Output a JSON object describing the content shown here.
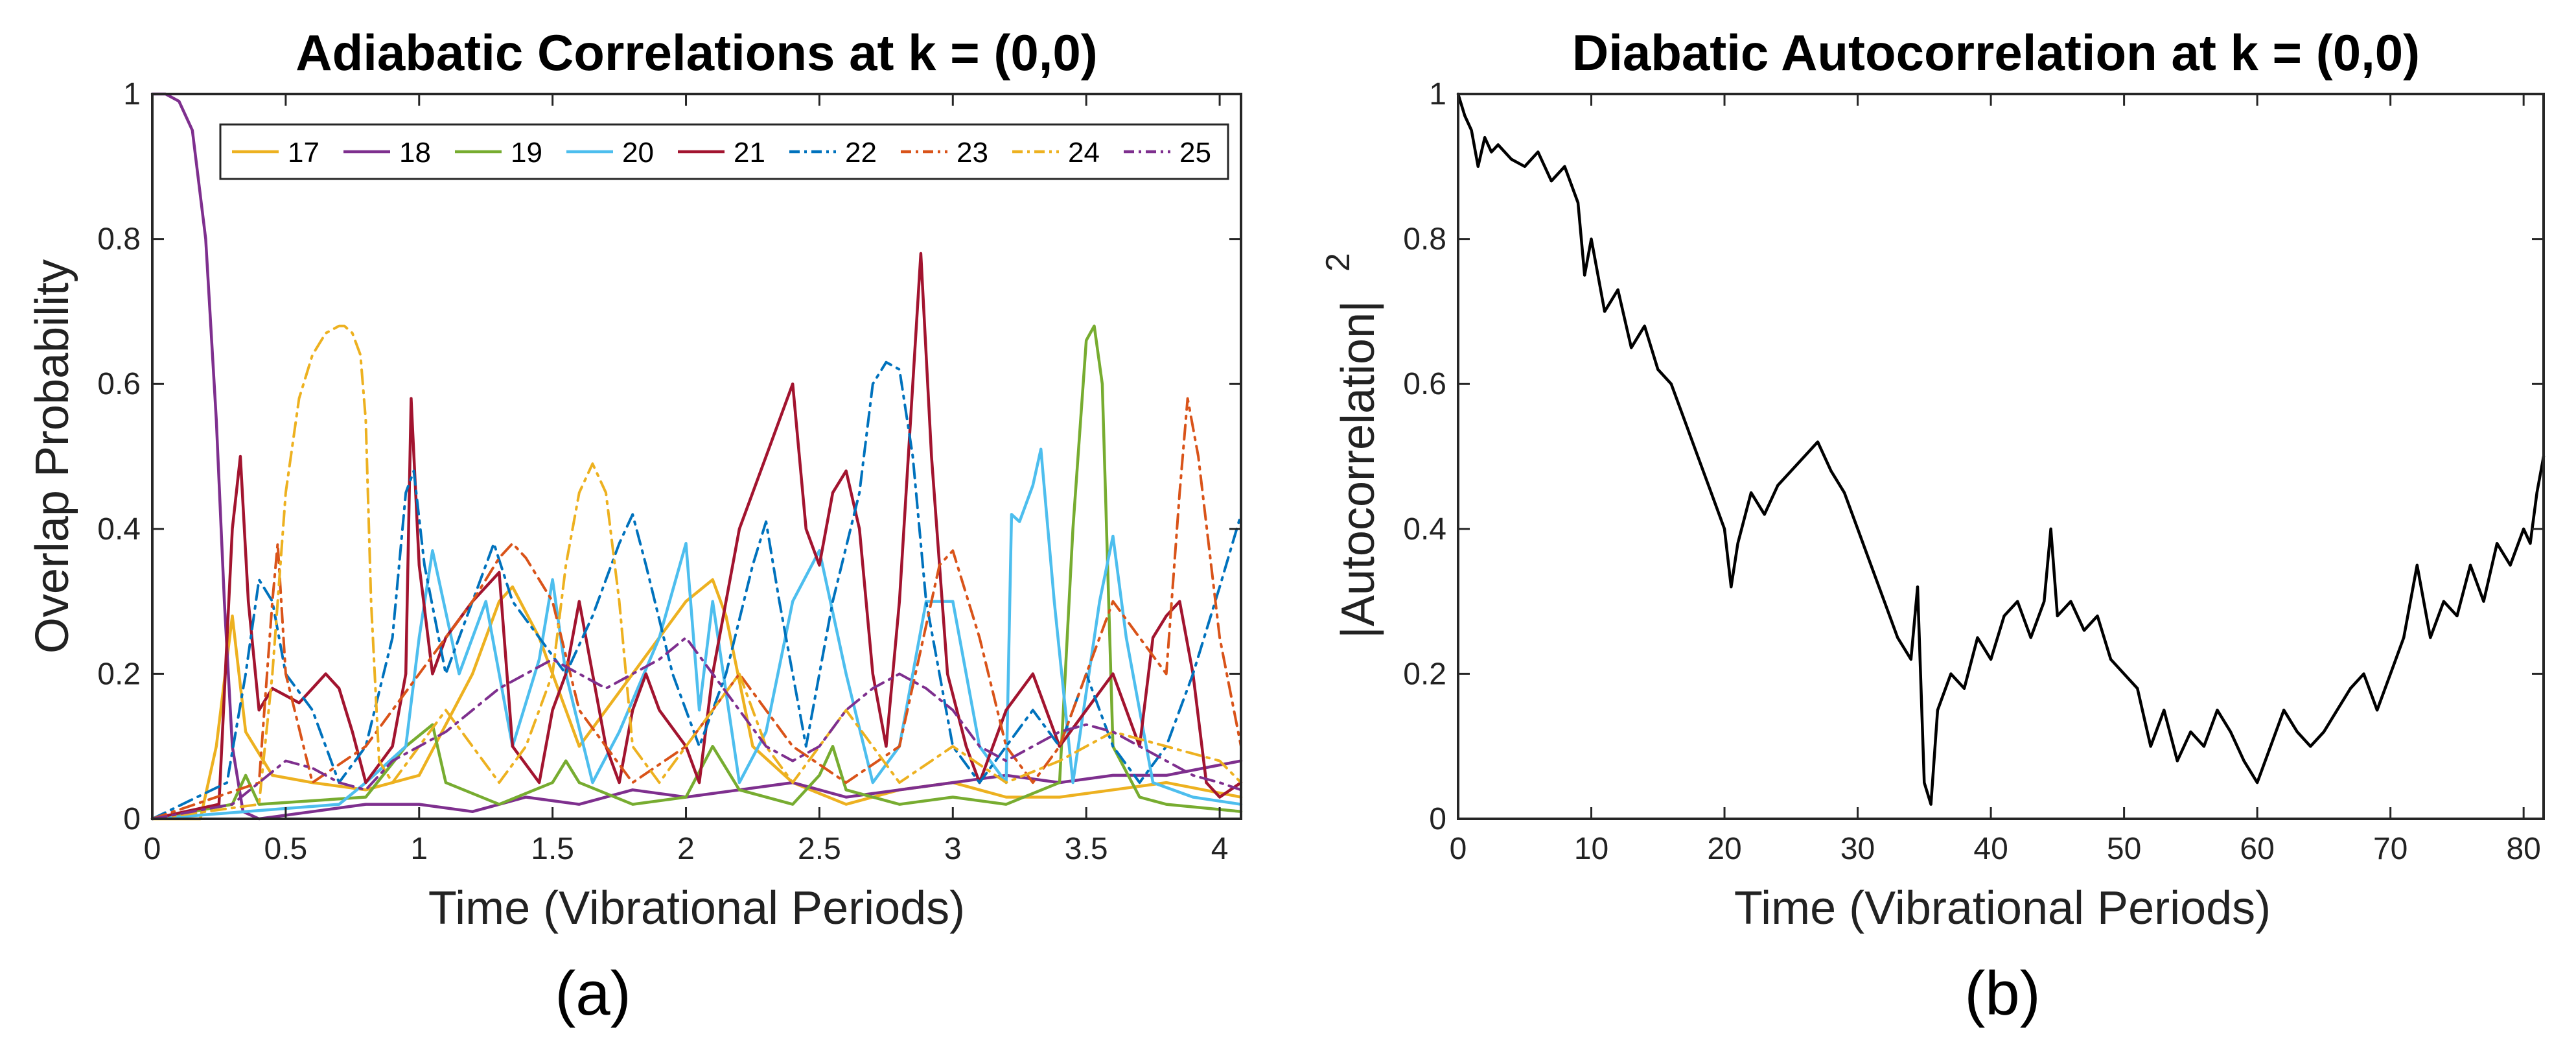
{
  "chart_data": [
    {
      "type": "line",
      "panel_label": "(a)",
      "title": "Adiabatic Correlations at k = (0,0)",
      "xlabel": "Time (Vibrational Periods)",
      "ylabel": "Overlap Probability",
      "xlim": [
        0,
        4.08
      ],
      "ylim": [
        0,
        1
      ],
      "xticks": [
        0,
        0.5,
        1,
        1.5,
        2,
        2.5,
        3,
        3.5,
        4
      ],
      "xtick_labels": [
        "0",
        "0.5",
        "1",
        "1.5",
        "2",
        "2.5",
        "3",
        "3.5",
        "4"
      ],
      "yticks": [
        0,
        0.2,
        0.4,
        0.6,
        0.8,
        1
      ],
      "ytick_labels": [
        "0",
        "0.2",
        "0.4",
        "0.6",
        "0.8",
        "1"
      ],
      "legend_position": "top",
      "series": [
        {
          "name": "17",
          "color": "#EDB120",
          "dash": "solid",
          "x": [
            0,
            0.18,
            0.24,
            0.3,
            0.35,
            0.45,
            0.6,
            0.8,
            1.0,
            1.2,
            1.3,
            1.35,
            1.45,
            1.6,
            1.8,
            2.0,
            2.1,
            2.15,
            2.25,
            2.4,
            2.6,
            2.8,
            3.0,
            3.2,
            3.4,
            3.6,
            3.8,
            4.08
          ],
          "y": [
            0,
            0,
            0.1,
            0.28,
            0.12,
            0.06,
            0.05,
            0.04,
            0.06,
            0.2,
            0.3,
            0.32,
            0.25,
            0.1,
            0.2,
            0.3,
            0.33,
            0.28,
            0.1,
            0.05,
            0.02,
            0.04,
            0.05,
            0.03,
            0.03,
            0.04,
            0.05,
            0.03
          ]
        },
        {
          "name": "18",
          "color": "#7E2F8E",
          "dash": "solid",
          "x": [
            0,
            0.05,
            0.1,
            0.15,
            0.2,
            0.24,
            0.27,
            0.3,
            0.34,
            0.4,
            0.6,
            0.8,
            1.0,
            1.2,
            1.4,
            1.6,
            1.8,
            2.0,
            2.2,
            2.4,
            2.6,
            2.8,
            3.0,
            3.2,
            3.4,
            3.6,
            3.8,
            4.08
          ],
          "y": [
            1,
            1,
            0.99,
            0.95,
            0.8,
            0.55,
            0.3,
            0.1,
            0.01,
            0,
            0.01,
            0.02,
            0.02,
            0.01,
            0.03,
            0.02,
            0.04,
            0.03,
            0.04,
            0.05,
            0.03,
            0.04,
            0.05,
            0.06,
            0.05,
            0.06,
            0.06,
            0.08
          ]
        },
        {
          "name": "19",
          "color": "#77AC30",
          "dash": "solid",
          "x": [
            0,
            0.3,
            0.35,
            0.4,
            0.8,
            0.95,
            1.05,
            1.1,
            1.3,
            1.5,
            1.55,
            1.6,
            1.8,
            2.0,
            2.1,
            2.2,
            2.4,
            2.5,
            2.55,
            2.6,
            2.8,
            3.0,
            3.2,
            3.4,
            3.45,
            3.5,
            3.53,
            3.56,
            3.6,
            3.7,
            3.8,
            4.08
          ],
          "y": [
            0,
            0.02,
            0.06,
            0.02,
            0.03,
            0.1,
            0.13,
            0.05,
            0.02,
            0.05,
            0.08,
            0.05,
            0.02,
            0.03,
            0.1,
            0.04,
            0.02,
            0.06,
            0.1,
            0.04,
            0.02,
            0.03,
            0.02,
            0.05,
            0.4,
            0.66,
            0.68,
            0.6,
            0.1,
            0.03,
            0.02,
            0.01
          ]
        },
        {
          "name": "20",
          "color": "#4DBEEE",
          "dash": "solid",
          "x": [
            0,
            0.7,
            0.8,
            0.95,
            1.0,
            1.05,
            1.15,
            1.25,
            1.35,
            1.45,
            1.5,
            1.55,
            1.65,
            1.75,
            1.9,
            2.0,
            2.05,
            2.1,
            2.2,
            2.3,
            2.4,
            2.5,
            2.6,
            2.7,
            2.8,
            2.9,
            3.0,
            3.1,
            3.2,
            3.22,
            3.25,
            3.3,
            3.33,
            3.38,
            3.45,
            3.55,
            3.6,
            3.65,
            3.75,
            3.9,
            4.08
          ],
          "y": [
            0,
            0.02,
            0.05,
            0.1,
            0.25,
            0.37,
            0.2,
            0.3,
            0.1,
            0.22,
            0.33,
            0.2,
            0.05,
            0.12,
            0.25,
            0.38,
            0.15,
            0.3,
            0.05,
            0.12,
            0.3,
            0.37,
            0.2,
            0.05,
            0.1,
            0.3,
            0.3,
            0.1,
            0.05,
            0.42,
            0.41,
            0.46,
            0.51,
            0.3,
            0.05,
            0.3,
            0.39,
            0.25,
            0.05,
            0.03,
            0.02
          ]
        },
        {
          "name": "21",
          "color": "#A2142F",
          "dash": "solid",
          "x": [
            0,
            0.25,
            0.3,
            0.33,
            0.36,
            0.4,
            0.45,
            0.5,
            0.55,
            0.6,
            0.65,
            0.7,
            0.75,
            0.8,
            0.9,
            0.95,
            0.97,
            1.0,
            1.05,
            1.1,
            1.2,
            1.3,
            1.35,
            1.45,
            1.5,
            1.55,
            1.6,
            1.7,
            1.75,
            1.8,
            1.85,
            1.9,
            2.0,
            2.05,
            2.1,
            2.2,
            2.25,
            2.3,
            2.35,
            2.4,
            2.45,
            2.5,
            2.55,
            2.6,
            2.65,
            2.7,
            2.75,
            2.8,
            2.85,
            2.88,
            2.92,
            2.98,
            3.05,
            3.1,
            3.15,
            3.2,
            3.3,
            3.4,
            3.5,
            3.6,
            3.7,
            3.75,
            3.8,
            3.85,
            3.9,
            3.95,
            4.0,
            4.08
          ],
          "y": [
            0,
            0.02,
            0.4,
            0.5,
            0.3,
            0.15,
            0.18,
            0.17,
            0.16,
            0.18,
            0.2,
            0.18,
            0.12,
            0.05,
            0.1,
            0.2,
            0.58,
            0.35,
            0.2,
            0.25,
            0.3,
            0.34,
            0.1,
            0.05,
            0.15,
            0.2,
            0.3,
            0.1,
            0.05,
            0.15,
            0.2,
            0.15,
            0.1,
            0.05,
            0.2,
            0.4,
            0.45,
            0.5,
            0.55,
            0.6,
            0.4,
            0.35,
            0.45,
            0.48,
            0.4,
            0.2,
            0.1,
            0.3,
            0.6,
            0.78,
            0.5,
            0.2,
            0.1,
            0.05,
            0.1,
            0.15,
            0.2,
            0.1,
            0.15,
            0.2,
            0.1,
            0.25,
            0.28,
            0.3,
            0.2,
            0.05,
            0.03,
            0.05
          ]
        },
        {
          "name": "22",
          "color": "#0072BD",
          "dash": "dashdot",
          "x": [
            0,
            0.28,
            0.35,
            0.4,
            0.45,
            0.5,
            0.6,
            0.7,
            0.8,
            0.9,
            0.95,
            0.98,
            1.02,
            1.1,
            1.2,
            1.28,
            1.35,
            1.45,
            1.55,
            1.65,
            1.75,
            1.8,
            1.85,
            1.95,
            2.05,
            2.15,
            2.25,
            2.3,
            2.35,
            2.45,
            2.55,
            2.65,
            2.7,
            2.75,
            2.8,
            2.85,
            2.9,
            3.0,
            3.1,
            3.2,
            3.3,
            3.4,
            3.5,
            3.6,
            3.7,
            3.8,
            3.9,
            4.0,
            4.08
          ],
          "y": [
            0,
            0.05,
            0.2,
            0.33,
            0.3,
            0.2,
            0.15,
            0.05,
            0.1,
            0.25,
            0.45,
            0.48,
            0.35,
            0.2,
            0.3,
            0.38,
            0.3,
            0.25,
            0.2,
            0.28,
            0.38,
            0.42,
            0.35,
            0.2,
            0.1,
            0.2,
            0.35,
            0.41,
            0.3,
            0.1,
            0.3,
            0.45,
            0.6,
            0.63,
            0.62,
            0.5,
            0.3,
            0.1,
            0.05,
            0.1,
            0.15,
            0.1,
            0.2,
            0.1,
            0.05,
            0.1,
            0.2,
            0.32,
            0.42
          ]
        },
        {
          "name": "23",
          "color": "#D95319",
          "dash": "dashdot",
          "x": [
            0,
            0.4,
            0.45,
            0.47,
            0.5,
            0.6,
            0.8,
            1.0,
            1.2,
            1.3,
            1.35,
            1.4,
            1.5,
            1.6,
            1.8,
            2.0,
            2.2,
            2.4,
            2.6,
            2.8,
            2.95,
            3.0,
            3.1,
            3.2,
            3.3,
            3.4,
            3.5,
            3.6,
            3.7,
            3.8,
            3.85,
            3.88,
            3.92,
            4.0,
            4.08
          ],
          "y": [
            0,
            0.05,
            0.3,
            0.38,
            0.2,
            0.05,
            0.1,
            0.2,
            0.3,
            0.36,
            0.38,
            0.36,
            0.3,
            0.15,
            0.05,
            0.1,
            0.2,
            0.1,
            0.05,
            0.1,
            0.35,
            0.37,
            0.25,
            0.1,
            0.05,
            0.1,
            0.2,
            0.3,
            0.25,
            0.2,
            0.45,
            0.58,
            0.5,
            0.25,
            0.1
          ]
        },
        {
          "name": "24",
          "color": "#EDB120",
          "dash": "dashdot",
          "x": [
            0,
            0.4,
            0.45,
            0.5,
            0.55,
            0.6,
            0.65,
            0.7,
            0.72,
            0.75,
            0.78,
            0.8,
            0.82,
            0.85,
            0.9,
            1.0,
            1.1,
            1.2,
            1.3,
            1.4,
            1.5,
            1.55,
            1.6,
            1.65,
            1.7,
            1.75,
            1.8,
            1.9,
            2.0,
            2.1,
            2.2,
            2.3,
            2.4,
            2.5,
            2.6,
            2.7,
            2.8,
            3.0,
            3.2,
            3.4,
            3.6,
            3.8,
            4.0,
            4.08
          ],
          "y": [
            0,
            0.02,
            0.2,
            0.45,
            0.58,
            0.64,
            0.67,
            0.68,
            0.68,
            0.67,
            0.64,
            0.55,
            0.3,
            0.08,
            0.05,
            0.1,
            0.15,
            0.1,
            0.05,
            0.1,
            0.2,
            0.35,
            0.45,
            0.49,
            0.45,
            0.3,
            0.1,
            0.05,
            0.1,
            0.15,
            0.2,
            0.1,
            0.05,
            0.1,
            0.15,
            0.1,
            0.05,
            0.1,
            0.05,
            0.08,
            0.12,
            0.1,
            0.08,
            0.05
          ]
        },
        {
          "name": "25",
          "color": "#7E2F8E",
          "dash": "dashdot",
          "x": [
            0,
            0.3,
            0.4,
            0.5,
            0.6,
            0.7,
            0.8,
            0.9,
            1.0,
            1.1,
            1.2,
            1.3,
            1.4,
            1.5,
            1.6,
            1.7,
            1.8,
            1.9,
            2.0,
            2.1,
            2.2,
            2.3,
            2.4,
            2.5,
            2.6,
            2.7,
            2.8,
            2.9,
            3.0,
            3.1,
            3.2,
            3.3,
            3.4,
            3.5,
            3.6,
            3.7,
            3.8,
            3.9,
            4.0,
            4.08
          ],
          "y": [
            0,
            0.02,
            0.05,
            0.08,
            0.07,
            0.05,
            0.04,
            0.08,
            0.1,
            0.12,
            0.15,
            0.18,
            0.2,
            0.22,
            0.2,
            0.18,
            0.2,
            0.22,
            0.25,
            0.2,
            0.15,
            0.1,
            0.08,
            0.1,
            0.15,
            0.18,
            0.2,
            0.18,
            0.15,
            0.1,
            0.08,
            0.1,
            0.12,
            0.13,
            0.12,
            0.1,
            0.08,
            0.06,
            0.05,
            0.04
          ]
        }
      ],
      "legend_entries": [
        "17",
        "18",
        "19",
        "20",
        "21",
        "22",
        "23",
        "24",
        "25"
      ]
    },
    {
      "type": "line",
      "panel_label": "(b)",
      "title": "Diabatic Autocorrelation at k = (0,0)",
      "xlabel": "Time (Vibrational Periods)",
      "ylabel": "|Autocorrelation|",
      "ylabel_superscript": "2",
      "xlim": [
        0,
        81.5
      ],
      "ylim": [
        0,
        1
      ],
      "xticks": [
        0,
        10,
        20,
        30,
        40,
        50,
        60,
        70,
        80
      ],
      "xtick_labels": [
        "0",
        "10",
        "20",
        "30",
        "40",
        "50",
        "60",
        "70",
        "80"
      ],
      "yticks": [
        0,
        0.2,
        0.4,
        0.6,
        0.8,
        1
      ],
      "ytick_labels": [
        "0",
        "0.2",
        "0.4",
        "0.6",
        "0.8",
        "1"
      ],
      "series": [
        {
          "name": "autocorrelation",
          "color": "#000000",
          "dash": "solid",
          "x": [
            0,
            0.5,
            1,
            1.5,
            2,
            2.5,
            3,
            4,
            5,
            6,
            7,
            8,
            9,
            9.5,
            10,
            11,
            12,
            13,
            14,
            15,
            16,
            17,
            18,
            19,
            20,
            20.5,
            21,
            22,
            23,
            24,
            25,
            26,
            27,
            28,
            29,
            30,
            31,
            32,
            33,
            34,
            34.5,
            35,
            35.5,
            36,
            37,
            38,
            39,
            40,
            41,
            42,
            43,
            44,
            44.5,
            45,
            46,
            47,
            48,
            49,
            50,
            51,
            52,
            53,
            54,
            55,
            56,
            57,
            58,
            59,
            60,
            61,
            62,
            63,
            64,
            65,
            66,
            67,
            68,
            69,
            70,
            71,
            72,
            73,
            74,
            75,
            76,
            77,
            78,
            79,
            80,
            80.5,
            81,
            81.5
          ],
          "y": [
            1,
            0.97,
            0.95,
            0.9,
            0.94,
            0.92,
            0.93,
            0.91,
            0.9,
            0.92,
            0.88,
            0.9,
            0.85,
            0.75,
            0.8,
            0.7,
            0.73,
            0.65,
            0.68,
            0.62,
            0.6,
            0.55,
            0.5,
            0.45,
            0.4,
            0.32,
            0.38,
            0.45,
            0.42,
            0.46,
            0.48,
            0.5,
            0.52,
            0.48,
            0.45,
            0.4,
            0.35,
            0.3,
            0.25,
            0.22,
            0.32,
            0.05,
            0.02,
            0.15,
            0.2,
            0.18,
            0.25,
            0.22,
            0.28,
            0.3,
            0.25,
            0.3,
            0.4,
            0.28,
            0.3,
            0.26,
            0.28,
            0.22,
            0.2,
            0.18,
            0.1,
            0.15,
            0.08,
            0.12,
            0.1,
            0.15,
            0.12,
            0.08,
            0.05,
            0.1,
            0.15,
            0.12,
            0.1,
            0.12,
            0.15,
            0.18,
            0.2,
            0.15,
            0.2,
            0.25,
            0.35,
            0.25,
            0.3,
            0.28,
            0.35,
            0.3,
            0.38,
            0.35,
            0.4,
            0.38,
            0.45,
            0.5
          ]
        }
      ]
    }
  ]
}
